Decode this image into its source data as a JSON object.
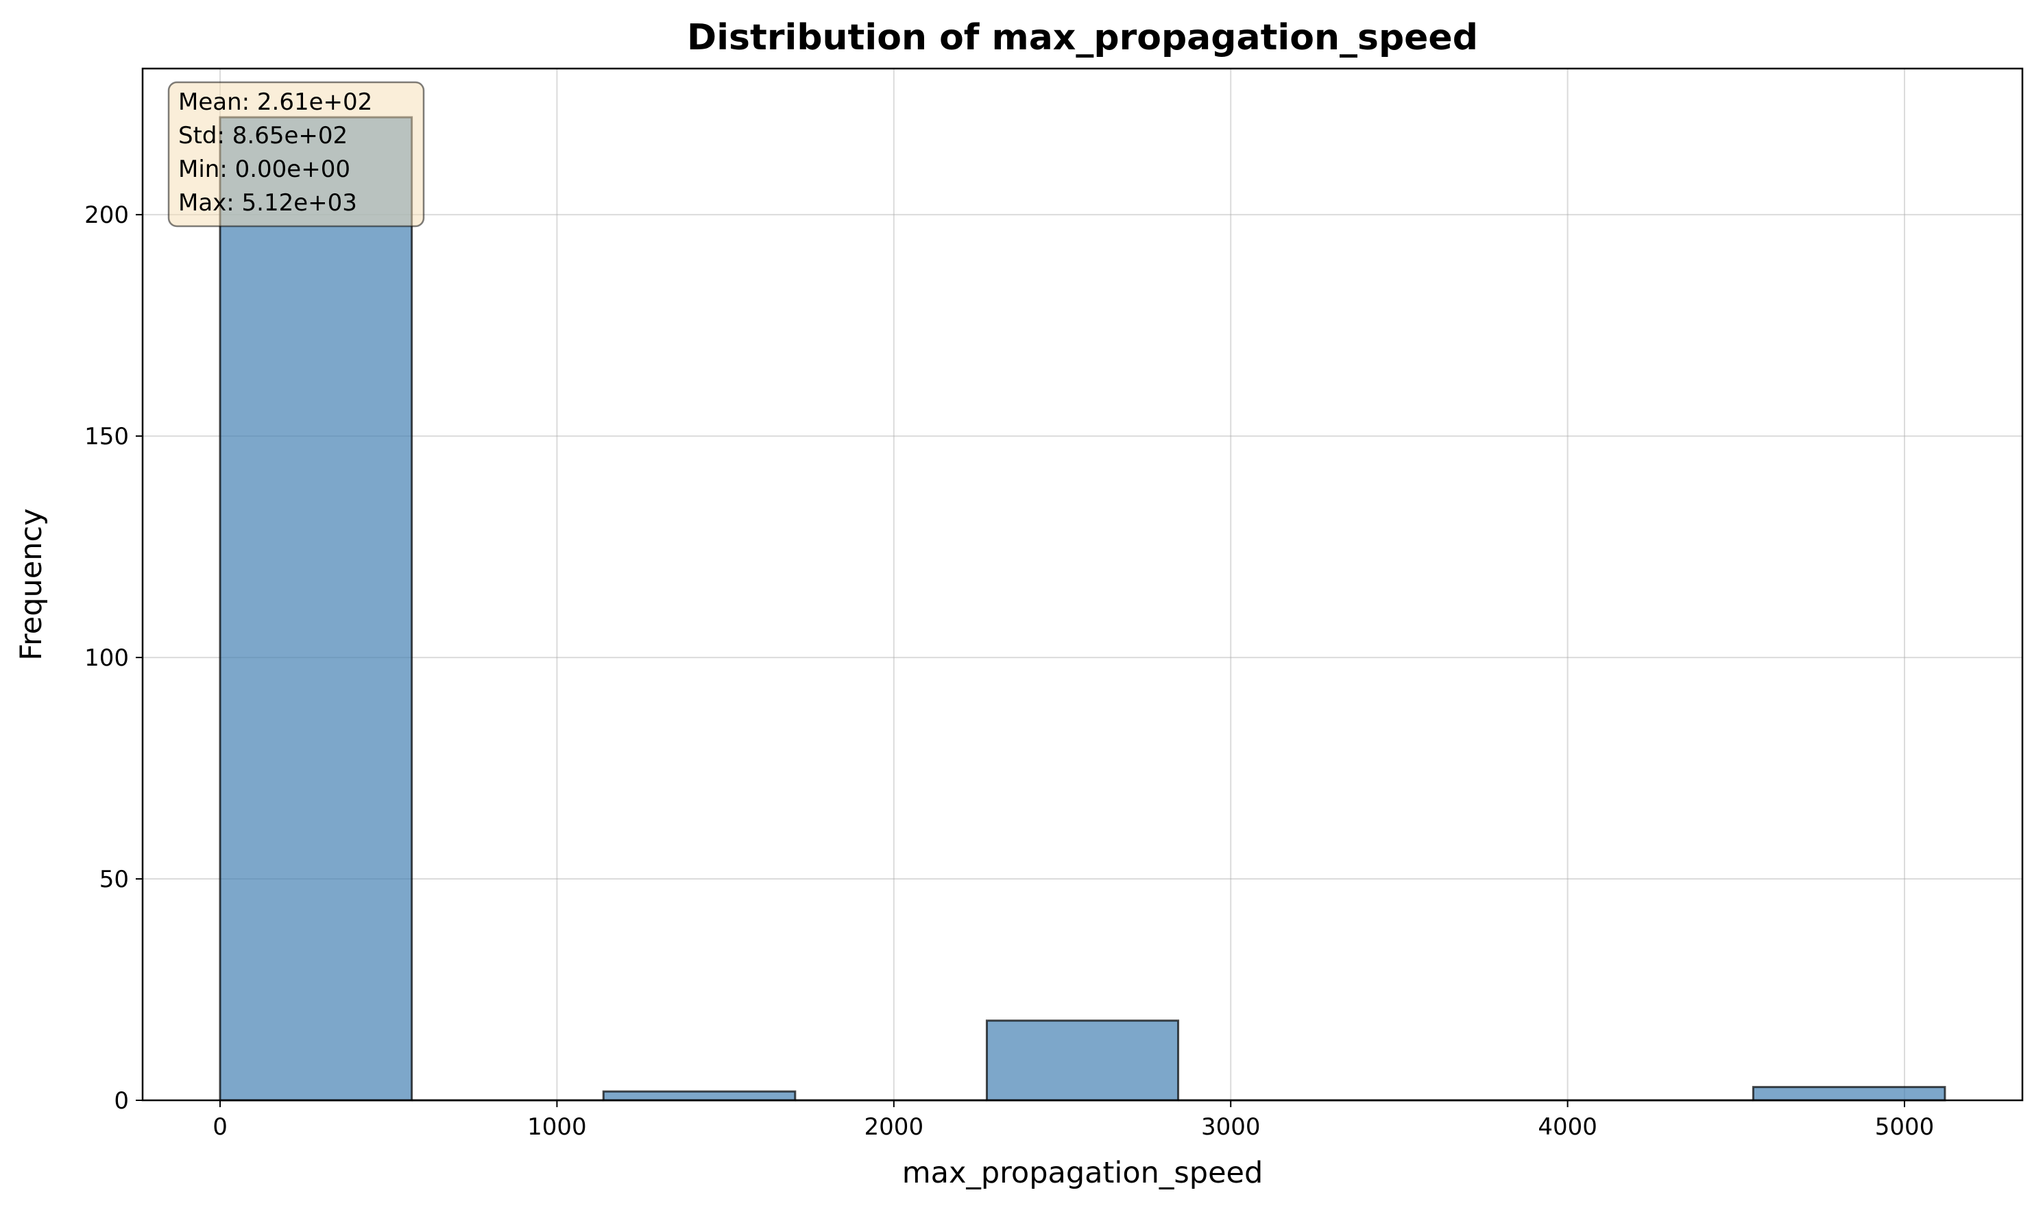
{
  "chart_data": {
    "type": "bar",
    "subtype": "histogram",
    "title": "Distribution of max_propagation_speed",
    "xlabel": "max_propagation_speed",
    "ylabel": "Frequency",
    "xlim": [
      -230,
      5350
    ],
    "ylim": [
      0,
      233
    ],
    "xticks": [
      0,
      1000,
      2000,
      3000,
      4000,
      5000
    ],
    "yticks": [
      0,
      50,
      100,
      150,
      200
    ],
    "grid": true,
    "bar_color": "#4682b4",
    "bin_edges": [
      0,
      569,
      1138,
      1707,
      2276,
      2844,
      3413,
      3982,
      4551,
      5120
    ],
    "counts": [
      222,
      0,
      2,
      0,
      18,
      0,
      0,
      0,
      3
    ],
    "stats_box": {
      "placement": "top-left",
      "lines": [
        "Mean: 2.61e+02",
        "Std: 8.65e+02",
        "Min: 0.00e+00",
        "Max: 5.12e+03"
      ],
      "background": "#f5deb3"
    }
  }
}
